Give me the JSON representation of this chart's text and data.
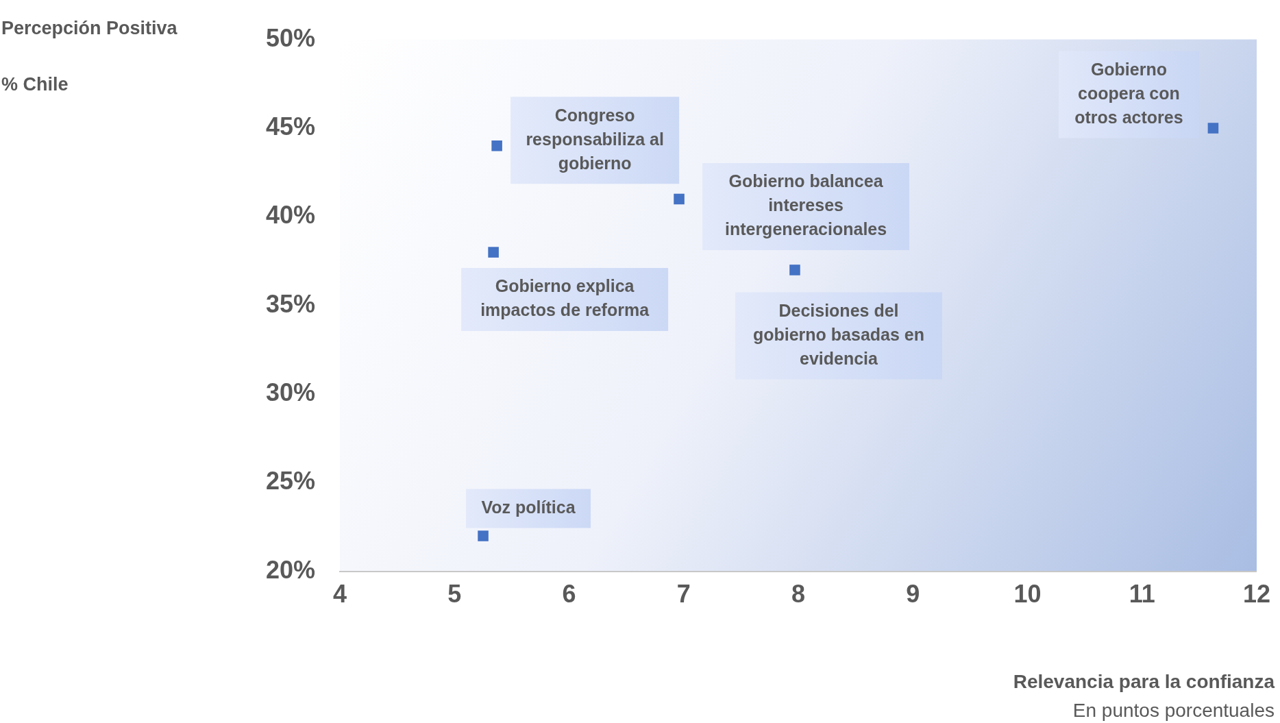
{
  "chart_data": {
    "type": "scatter",
    "ylabel": "Percepción Positiva\n% Chile",
    "xlabel": "Relevancia para la confianza",
    "x": [
      5.37,
      6.96,
      5.34,
      7.97,
      5.25,
      11.62
    ],
    "values": [
      44,
      41,
      38,
      37,
      22,
      45
    ],
    "color": "#4472c4",
    "marker": "square",
    "grid": false,
    "legend": false,
    "xlim": [
      4,
      12
    ],
    "xticks": [
      4,
      5,
      6,
      7,
      8,
      9,
      10,
      11,
      12
    ],
    "ylim": [
      20,
      50
    ],
    "yticks": [
      {
        "value": 20,
        "label": "20%"
      },
      {
        "value": 25,
        "label": "25%"
      },
      {
        "value": 30,
        "label": "30%"
      },
      {
        "value": 35,
        "label": "35%"
      },
      {
        "value": 40,
        "label": "40%"
      },
      {
        "value": 45,
        "label": "45%"
      },
      {
        "value": 50,
        "label": "50%"
      }
    ],
    "annotations": [
      {
        "text": "Congreso responsabiliza al gobierno",
        "x": 5.37,
        "y": 44
      },
      {
        "text": "Gobierno balancea intereses intergeneracionales",
        "x": 6.96,
        "y": 41
      },
      {
        "text": "Gobierno explica impactos de reforma",
        "x": 5.34,
        "y": 38
      },
      {
        "text": "Decisiones del gobierno basadas en evidencia",
        "x": 7.97,
        "y": 37
      },
      {
        "text": "Voz política",
        "x": 5.25,
        "y": 22
      },
      {
        "text": "Gobierno coopera con otros actores",
        "x": 11.62,
        "y": 45
      },
      "En puntos porcentuales"
    ]
  }
}
